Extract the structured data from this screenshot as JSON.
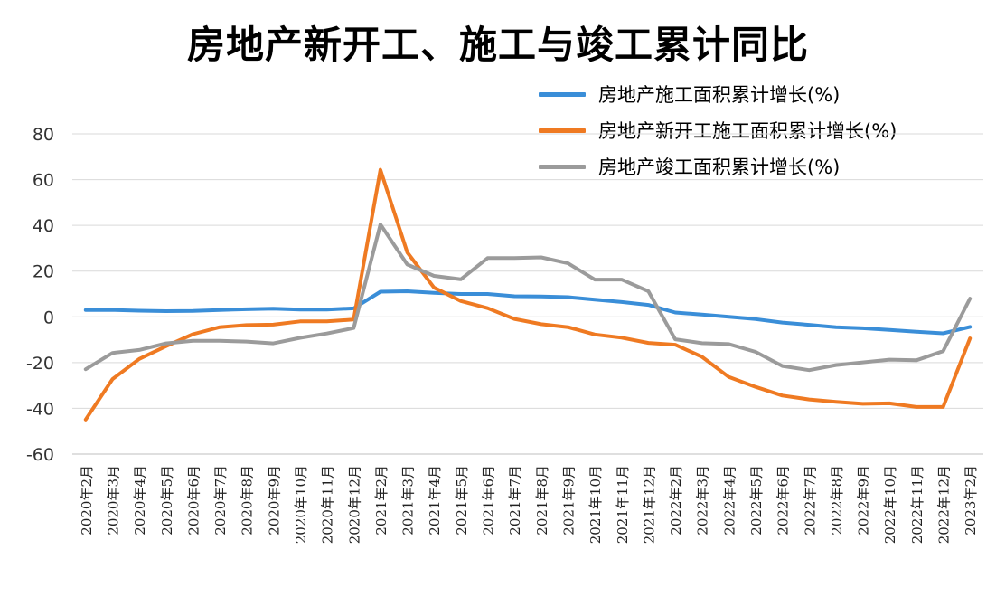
{
  "chart_data": {
    "type": "line",
    "title": "房地产新开工、施工与竣工累计同比",
    "xlabel": "",
    "ylabel": "",
    "ylim": [
      -60,
      80
    ],
    "yticks": [
      "80",
      "60",
      "40",
      "20",
      "0",
      "-20",
      "-40",
      "-60"
    ],
    "grid": true,
    "legend_position": "top-right",
    "categories": [
      "2020年2月",
      "2020年3月",
      "2020年4月",
      "2020年5月",
      "2020年6月",
      "2020年7月",
      "2020年8月",
      "2020年9月",
      "2020年10月",
      "2020年11月",
      "2020年12月",
      "2021年2月",
      "2021年3月",
      "2021年4月",
      "2021年5月",
      "2021年6月",
      "2021年7月",
      "2021年8月",
      "2021年9月",
      "2021年10月",
      "2021年11月",
      "2021年12月",
      "2022年2月",
      "2022年3月",
      "2022年4月",
      "2022年5月",
      "2022年6月",
      "2022年7月",
      "2022年8月",
      "2022年9月",
      "2022年10月",
      "2022年11月",
      "2022年12月",
      "2023年2月"
    ],
    "series": [
      {
        "name": "房地产施工面积累计增长(%)",
        "color": "#3a8ed8",
        "values": [
          3.0,
          3.0,
          2.7,
          2.5,
          2.6,
          3.0,
          3.3,
          3.6,
          3.2,
          3.2,
          3.7,
          11.0,
          11.2,
          10.5,
          10.0,
          10.0,
          9.0,
          8.9,
          8.6,
          7.5,
          6.5,
          5.2,
          1.9,
          1.0,
          0.0,
          -1.0,
          -2.5,
          -3.5,
          -4.5,
          -5.0,
          -5.7,
          -6.5,
          -7.2,
          -4.4
        ]
      },
      {
        "name": "房地产新开工施工面积累计增长(%)",
        "color": "#ef7a22",
        "values": [
          -44.9,
          -27.2,
          -18.4,
          -12.8,
          -7.6,
          -4.5,
          -3.6,
          -3.4,
          -2.0,
          -2.0,
          -1.2,
          64.3,
          28.2,
          12.8,
          6.9,
          3.8,
          -0.9,
          -3.2,
          -4.5,
          -7.7,
          -9.1,
          -11.4,
          -12.2,
          -17.5,
          -26.3,
          -30.6,
          -34.4,
          -36.1,
          -37.2,
          -38.0,
          -37.8,
          -39.4,
          -39.4,
          -9.4
        ]
      },
      {
        "name": "房地产竣工面积累计增长(%)",
        "color": "#9b9b9b",
        "values": [
          -22.9,
          -15.8,
          -14.5,
          -11.6,
          -10.5,
          -10.5,
          -10.8,
          -11.6,
          -9.2,
          -7.3,
          -4.9,
          40.4,
          22.9,
          17.9,
          16.4,
          25.7,
          25.7,
          26.0,
          23.4,
          16.3,
          16.3,
          11.2,
          -9.8,
          -11.5,
          -11.9,
          -15.3,
          -21.5,
          -23.3,
          -21.1,
          -19.9,
          -18.7,
          -19.0,
          -15.0,
          8.0
        ]
      }
    ]
  }
}
